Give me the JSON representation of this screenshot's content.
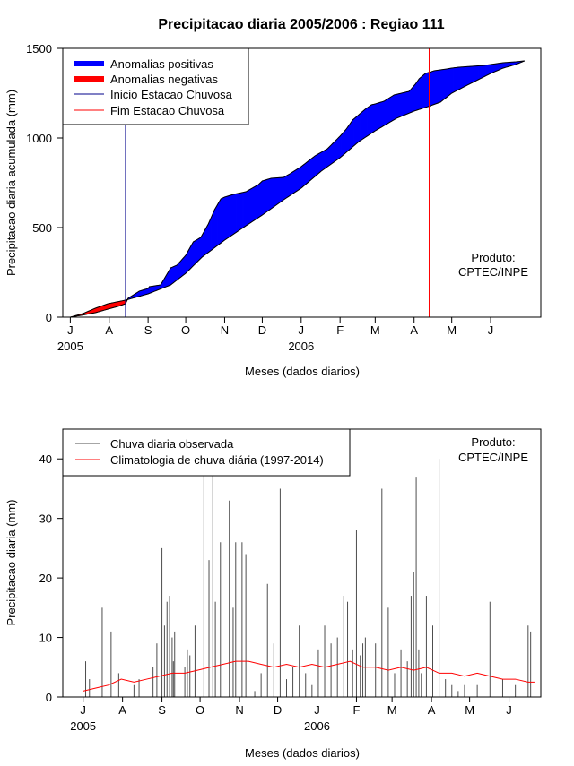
{
  "chart_data": [
    {
      "type": "area",
      "title": "Precipitacao diaria 2005/2006 : Regiao 111",
      "xlabel": "Meses (dados diarios)",
      "ylabel": "Precipitacao diaria acumulada (mm)",
      "ylim": [
        0,
        1500
      ],
      "yticks": [
        0,
        500,
        1000,
        1500
      ],
      "month_ticks": [
        "J",
        "A",
        "S",
        "O",
        "N",
        "D",
        "J",
        "F",
        "M",
        "A",
        "M",
        "J"
      ],
      "year_labels": [
        {
          "label": "2005",
          "month_index": 0
        },
        {
          "label": "2006",
          "month_index": 6
        }
      ],
      "x_unit": "days since 1 Jul 2005",
      "month_starts": [
        0,
        31,
        62,
        92,
        123,
        153,
        184,
        215,
        243,
        274,
        304,
        335
      ],
      "xlim": [
        -6,
        375
      ],
      "legend": [
        {
          "label": "Anomalias positivas",
          "color": "#0000ff",
          "style": "thick"
        },
        {
          "label": "Anomalias negativas",
          "color": "#ff0000",
          "style": "thick"
        },
        {
          "label": "Inicio Estacao Chuvosa",
          "color": "#00008b",
          "style": "line"
        },
        {
          "label": "Fim Estacao Chuvosa",
          "color": "#ff0000",
          "style": "line"
        }
      ],
      "rainy_season_start_day": 44,
      "rainy_season_end_day": 286,
      "series": [
        {
          "name": "Observada acumulada",
          "x": [
            0,
            10,
            20,
            30,
            38,
            44,
            46,
            55,
            62,
            63,
            72,
            80,
            85,
            92,
            98,
            104,
            110,
            115,
            120,
            123,
            130,
            140,
            150,
            153,
            160,
            170,
            175,
            184,
            195,
            205,
            215,
            220,
            225,
            235,
            240,
            243,
            250,
            258,
            270,
            275,
            278,
            283,
            290,
            300,
            304,
            310,
            320,
            330,
            335,
            345,
            355,
            362
          ],
          "values": [
            0,
            12,
            25,
            45,
            60,
            75,
            105,
            145,
            160,
            170,
            180,
            275,
            290,
            345,
            420,
            445,
            520,
            600,
            660,
            670,
            685,
            700,
            740,
            760,
            775,
            780,
            800,
            840,
            900,
            940,
            1010,
            1050,
            1100,
            1160,
            1185,
            1190,
            1205,
            1240,
            1260,
            1300,
            1330,
            1360,
            1375,
            1385,
            1390,
            1395,
            1400,
            1405,
            1410,
            1420,
            1425,
            1430
          ]
        },
        {
          "name": "Climatologia acumulada",
          "x": [
            0,
            10,
            20,
            30,
            44,
            62,
            80,
            92,
            105,
            123,
            140,
            153,
            170,
            184,
            200,
            215,
            230,
            243,
            260,
            274,
            285,
            295,
            304,
            315,
            335,
            345,
            355,
            362
          ],
          "values": [
            0,
            20,
            50,
            75,
            95,
            130,
            180,
            245,
            335,
            430,
            510,
            570,
            655,
            720,
            815,
            890,
            980,
            1040,
            1110,
            1150,
            1175,
            1200,
            1250,
            1290,
            1360,
            1390,
            1410,
            1430
          ]
        }
      ],
      "annotation": [
        "Produto:",
        "CPTEC/INPE"
      ]
    },
    {
      "type": "bar",
      "title": "",
      "xlabel": "Meses (dados diarios)",
      "ylabel": "Precipitacao diaria (mm)",
      "ylim": [
        0,
        45
      ],
      "yticks": [
        0,
        10,
        20,
        30,
        40
      ],
      "month_ticks": [
        "J",
        "A",
        "S",
        "O",
        "N",
        "D",
        "J",
        "F",
        "M",
        "A",
        "M",
        "J"
      ],
      "year_labels": [
        {
          "label": "2005",
          "month_index": 0
        },
        {
          "label": "2006",
          "month_index": 6
        }
      ],
      "x_unit": "days since 1 Jul 2005",
      "month_starts": [
        0,
        31,
        62,
        92,
        123,
        153,
        184,
        215,
        243,
        274,
        304,
        335
      ],
      "xlim": [
        -16,
        360
      ],
      "legend": [
        {
          "label": "Chuva diaria observada",
          "color": "#4d4d4d",
          "style": "line"
        },
        {
          "label": "Climatologia de chuva diária (1997-2014)",
          "color": "#ff0000",
          "style": "line"
        }
      ],
      "series": [
        {
          "name": "Chuva diaria observada",
          "type": "bar",
          "x": [
            2,
            5,
            15,
            22,
            28,
            40,
            44,
            55,
            58,
            62,
            64,
            66,
            68,
            70,
            71,
            72,
            80,
            82,
            84,
            88,
            95,
            99,
            102,
            104,
            108,
            115,
            118,
            120,
            125,
            128,
            135,
            140,
            145,
            150,
            155,
            160,
            165,
            170,
            175,
            180,
            185,
            190,
            195,
            200,
            205,
            208,
            212,
            215,
            218,
            220,
            222,
            230,
            235,
            240,
            245,
            250,
            255,
            258,
            260,
            262,
            264,
            266,
            270,
            275,
            280,
            285,
            290,
            295,
            300,
            310,
            320,
            330,
            340,
            350,
            352
          ],
          "values": [
            6,
            3,
            15,
            11,
            4,
            2,
            3,
            5,
            9,
            25,
            12,
            16,
            17,
            10,
            6,
            11,
            5,
            8,
            7,
            12,
            40,
            23,
            40,
            16,
            26,
            33,
            15,
            26,
            26,
            24,
            1,
            4,
            19,
            9,
            35,
            3,
            5,
            12,
            4,
            2,
            8,
            12,
            9,
            10,
            17,
            16,
            8,
            28,
            7,
            9,
            10,
            9,
            35,
            15,
            4,
            8,
            6,
            17,
            21,
            37,
            8,
            4,
            17,
            12,
            40,
            3,
            2,
            1,
            2,
            2,
            16,
            3,
            2,
            12,
            11
          ]
        },
        {
          "name": "Climatologia de chuva diária (1997-2014)",
          "type": "line",
          "x": [
            0,
            10,
            20,
            30,
            40,
            50,
            60,
            70,
            80,
            90,
            100,
            110,
            120,
            130,
            140,
            150,
            160,
            170,
            180,
            190,
            200,
            210,
            220,
            230,
            240,
            250,
            260,
            270,
            280,
            290,
            300,
            310,
            320,
            330,
            340,
            350,
            355
          ],
          "values": [
            1,
            1.5,
            2,
            3,
            2.5,
            3,
            3.5,
            4,
            4,
            4.5,
            5,
            5.5,
            6,
            6,
            5.5,
            5,
            5.5,
            5,
            5.5,
            5,
            5.5,
            6,
            5,
            5,
            4.5,
            5,
            4.5,
            5,
            4,
            4,
            3.5,
            4,
            3.5,
            3,
            3,
            2.5,
            2.5
          ]
        }
      ],
      "annotation": [
        "Produto:",
        "CPTEC/INPE"
      ]
    }
  ]
}
